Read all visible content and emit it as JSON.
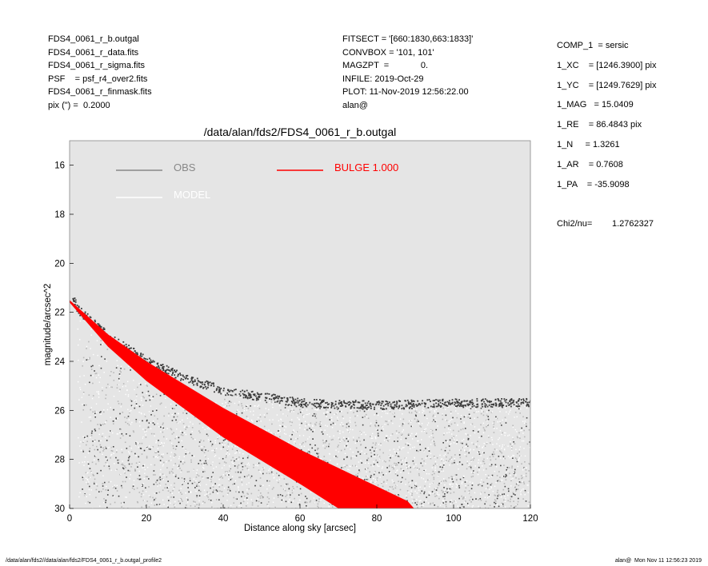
{
  "header_left": [
    "FDS4_0061_r_b.outgal",
    "FDS4_0061_r_data.fits",
    "FDS4_0061_r_sigma.fits",
    "PSF    = psf_r4_over2.fits",
    "FDS4_0061_r_finmask.fits",
    "pix (\") =  0.2000"
  ],
  "header_mid": [
    "FITSECT = '[660:1830,663:1833]'",
    "CONVBOX = '101, 101'",
    "MAGZPT  =             0.",
    "INFILE: 2019-Oct-29",
    "PLOT: 11-Nov-2019 12:56:22.00",
    "alan@"
  ],
  "params": [
    "COMP_1  = sersic",
    "1_XC    = [1246.3900] pix",
    "1_YC    = [1249.7629] pix",
    "1_MAG   = 15.0409",
    "1_RE    = 86.4843 pix",
    "1_N     = 1.3261",
    "1_AR    = 0.7608",
    "1_PA    = -35.9098"
  ],
  "chi2_label": "Chi2/nu=",
  "chi2_value": "1.2762327",
  "footer_left": "/data/alan/fds2//data/alan/fds2/FDS4_0061_r_b.outgal_profile2",
  "footer_right": "alan@  Mon Nov 11 12:56:23 2019",
  "colors": {
    "plot_bg": "#e5e5e5",
    "obs": "#555555",
    "model": "#ffffff",
    "bulge": "#ff0000",
    "legend_obs": "#888888"
  },
  "chart_data": {
    "type": "scatter",
    "title": "/data/alan/fds2/FDS4_0061_r_b.outgal",
    "xlabel": "Distance along sky [arcsec]",
    "ylabel": "magnitude/arcsec^2",
    "xlim": [
      0,
      120
    ],
    "ylim": [
      30,
      15
    ],
    "xticks": [
      0,
      20,
      40,
      60,
      80,
      100,
      120
    ],
    "yticks": [
      16,
      18,
      20,
      22,
      24,
      26,
      28,
      30
    ],
    "legend": [
      {
        "name": "OBS",
        "color": "#888888"
      },
      {
        "name": "MODEL",
        "color": "#ffffff"
      },
      {
        "name": "BULGE  1.000",
        "color": "#ff0000"
      }
    ],
    "legend_position": "top",
    "series": [
      {
        "name": "OBS",
        "description_points": [
          {
            "x": 0.3,
            "y": 21.1
          },
          {
            "x": 2,
            "y": 21.8
          },
          {
            "x": 5,
            "y": 22.2
          },
          {
            "x": 10,
            "y": 22.9
          },
          {
            "x": 20,
            "y": 23.9
          },
          {
            "x": 30,
            "y": 24.6
          },
          {
            "x": 40,
            "y": 25.1
          },
          {
            "x": 60,
            "y": 25.6
          },
          {
            "x": 80,
            "y": 25.7
          },
          {
            "x": 100,
            "y": 25.6
          },
          {
            "x": 120,
            "y": 25.6
          }
        ]
      },
      {
        "name": "BULGE  1.000",
        "upper_edge": [
          {
            "x": 0,
            "y": 21.5
          },
          {
            "x": 10,
            "y": 22.9
          },
          {
            "x": 20,
            "y": 24.0
          },
          {
            "x": 40,
            "y": 25.9
          },
          {
            "x": 60,
            "y": 27.6
          },
          {
            "x": 80,
            "y": 29.1
          },
          {
            "x": 88,
            "y": 29.7
          }
        ],
        "lower_edge": [
          {
            "x": 0,
            "y": 21.6
          },
          {
            "x": 10,
            "y": 23.4
          },
          {
            "x": 20,
            "y": 24.8
          },
          {
            "x": 40,
            "y": 27.1
          },
          {
            "x": 60,
            "y": 29.0
          },
          {
            "x": 70,
            "y": 30.0
          }
        ]
      }
    ]
  }
}
